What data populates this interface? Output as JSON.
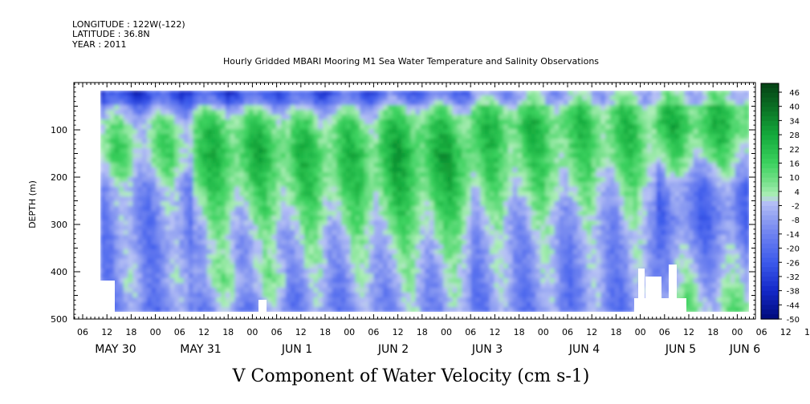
{
  "header": {
    "longitude": "LONGITUDE : 122W(-122)",
    "latitude": "LATITUDE : 36.8N",
    "year": "YEAR : 2011"
  },
  "chart_data": {
    "type": "heatmap",
    "title": "Hourly Gridded MBARI Mooring M1 Sea Water Temperature and Salinity Observations",
    "xlabel": "V Component of Water Velocity (cm s-1)",
    "ylabel": "DEPTH (m)",
    "yticks": [
      100,
      200,
      300,
      400,
      500
    ],
    "ylim": [
      500,
      0
    ],
    "x_hour_ticks": [
      "06",
      "12",
      "18",
      "00",
      "06",
      "12",
      "18",
      "00",
      "06",
      "12",
      "18",
      "00",
      "06",
      "12",
      "18",
      "00",
      "06",
      "12",
      "18",
      "00",
      "06",
      "12",
      "18",
      "00",
      "06",
      "12",
      "18",
      "00",
      "06",
      "12",
      "18",
      "00"
    ],
    "x_day_labels": [
      "MAY 30",
      "MAY 31",
      "JUN  1",
      "JUN  2",
      "JUN  3",
      "JUN  4",
      "JUN  5",
      "JUN  6"
    ],
    "colorbar": {
      "labels": [
        "46",
        "40",
        "34",
        "28",
        "22",
        "16",
        "10",
        "4",
        "-2",
        "-8",
        "-14",
        "-20",
        "-26",
        "-32",
        "-38",
        "-44",
        "-50"
      ],
      "min": -50,
      "max": 50
    },
    "series_note_colors": {
      "strong_negative": "#000a7a",
      "negative": "#6c7cf0",
      "weak_negative": "#a8b0f2",
      "weak_positive": "#a8f0b0",
      "positive": "#3ed664",
      "strong_positive": "#0a4a1a"
    },
    "bands": [
      {
        "day": "MAY 30",
        "values": [
          -22,
          4,
          10,
          -6,
          -10,
          -12,
          -8,
          -14
        ]
      },
      {
        "day": "MAY 31",
        "values": [
          -18,
          14,
          20,
          12,
          4,
          -4,
          2,
          -10
        ]
      },
      {
        "day": "JUN  1",
        "values": [
          -16,
          10,
          18,
          14,
          6,
          -2,
          -6,
          -12
        ]
      },
      {
        "day": "JUN  2",
        "values": [
          -10,
          16,
          22,
          18,
          10,
          2,
          -4,
          -8
        ]
      },
      {
        "day": "JUN  3",
        "values": [
          2,
          18,
          14,
          8,
          -2,
          -6,
          -8,
          -12
        ]
      },
      {
        "day": "JUN  4",
        "values": [
          6,
          16,
          12,
          4,
          -4,
          -8,
          -10,
          -12
        ]
      },
      {
        "day": "JUN  5",
        "values": [
          10,
          20,
          8,
          -12,
          -18,
          -10,
          -4,
          6
        ]
      }
    ]
  }
}
